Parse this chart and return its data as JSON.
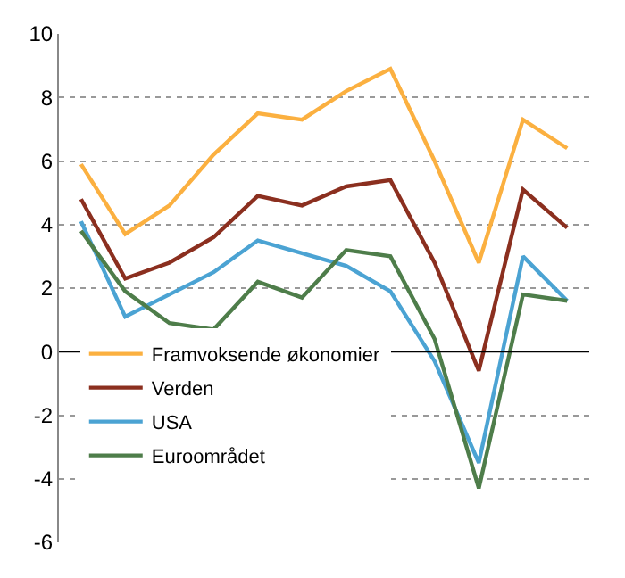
{
  "chart_data": {
    "type": "line",
    "categories": [
      null,
      null,
      null,
      null,
      null,
      null,
      null,
      null,
      null,
      null,
      null,
      null
    ],
    "series": [
      {
        "name": "Framvoksende økonomier",
        "color": "#fbb040",
        "values": [
          5.9,
          3.7,
          4.6,
          6.2,
          7.5,
          7.3,
          8.2,
          8.9,
          6.0,
          2.8,
          7.3,
          6.4
        ]
      },
      {
        "name": "Verden",
        "color": "#8b2f1f",
        "values": [
          4.8,
          2.3,
          2.8,
          3.6,
          4.9,
          4.6,
          5.2,
          5.4,
          2.8,
          -0.6,
          5.1,
          3.9
        ]
      },
      {
        "name": "USA",
        "color": "#4ba3d3",
        "values": [
          4.1,
          1.1,
          1.8,
          2.5,
          3.5,
          3.1,
          2.7,
          1.9,
          -0.3,
          -3.5,
          3.0,
          1.6
        ]
      },
      {
        "name": "Euroområdet",
        "color": "#4e7d4a",
        "values": [
          3.8,
          1.9,
          0.9,
          0.7,
          2.2,
          1.7,
          3.2,
          3.0,
          0.4,
          -4.3,
          1.8,
          1.6
        ]
      }
    ],
    "ylim": [
      -6,
      10
    ],
    "yticks": [
      -6,
      -4,
      -2,
      0,
      2,
      4,
      6,
      8,
      10
    ],
    "grid": "y",
    "legend": "bottom left",
    "marker": "none",
    "line_style": "solid",
    "ref_lines": [
      {
        "axis": "y",
        "value": 0,
        "color": "#000000",
        "line_style": "solid"
      }
    ]
  }
}
